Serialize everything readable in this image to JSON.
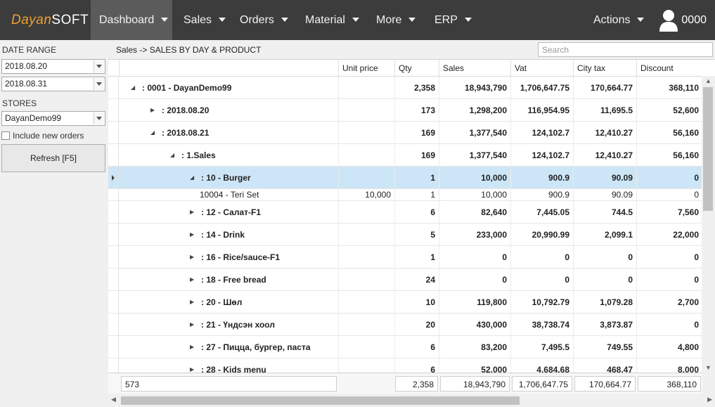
{
  "app": {
    "logo_part1": "Dayan",
    "logo_part2": "SOFT"
  },
  "nav": {
    "items": [
      {
        "label": "Dashboard"
      },
      {
        "label": "Sales"
      },
      {
        "label": "Orders"
      },
      {
        "label": "Material"
      },
      {
        "label": "More"
      },
      {
        "label": "ERP"
      }
    ],
    "actions_label": "Actions",
    "user_label": "0000"
  },
  "sidebar": {
    "date_range_label": "DATE RANGE",
    "date_from": "2018.08.20",
    "date_to": "2018.08.31",
    "stores_label": "STORES",
    "store_value": "DayanDemo99",
    "include_new_orders_label": "Include new orders",
    "refresh_label": "Refresh [F5]"
  },
  "breadcrumb": "Sales -> SALES BY DAY & PRODUCT",
  "search": {
    "placeholder": "Search"
  },
  "grid": {
    "columns": [
      "Unit price",
      "Qty",
      "Sales",
      "Vat",
      "City tax",
      "Discount"
    ],
    "rows": [
      {
        "toggle": "◢",
        "name": ": 0001 - DayanDemo99",
        "unit_price": "",
        "qty": "2,358",
        "sales": "18,943,790",
        "vat": "1,706,647.75",
        "city_tax": "170,664.77",
        "discount": "368,110"
      },
      {
        "toggle": "▶",
        "name": ": 2018.08.20",
        "unit_price": "",
        "qty": "173",
        "sales": "1,298,200",
        "vat": "116,954.95",
        "city_tax": "11,695.5",
        "discount": "52,600"
      },
      {
        "toggle": "◢",
        "name": ": 2018.08.21",
        "unit_price": "",
        "qty": "169",
        "sales": "1,377,540",
        "vat": "124,102.7",
        "city_tax": "12,410.27",
        "discount": "56,160"
      },
      {
        "toggle": "◢",
        "name": ": 1.Sales",
        "unit_price": "",
        "qty": "169",
        "sales": "1,377,540",
        "vat": "124,102.7",
        "city_tax": "12,410.27",
        "discount": "56,160"
      },
      {
        "toggle": "◢",
        "name": ": 10 - Burger",
        "unit_price": "",
        "qty": "1",
        "sales": "10,000",
        "vat": "900.9",
        "city_tax": "90.09",
        "discount": "0"
      },
      {
        "toggle": "",
        "name": "10004 - Teri Set",
        "unit_price": "10,000",
        "qty": "1",
        "sales": "10,000",
        "vat": "900.9",
        "city_tax": "90.09",
        "discount": "0"
      },
      {
        "toggle": "▶",
        "name": ": 12 - Салат-F1",
        "unit_price": "",
        "qty": "6",
        "sales": "82,640",
        "vat": "7,445.05",
        "city_tax": "744.5",
        "discount": "7,560"
      },
      {
        "toggle": "▶",
        "name": ": 14 - Drink",
        "unit_price": "",
        "qty": "5",
        "sales": "233,000",
        "vat": "20,990.99",
        "city_tax": "2,099.1",
        "discount": "22,000"
      },
      {
        "toggle": "▶",
        "name": ": 16 - Rice/sauce-F1",
        "unit_price": "",
        "qty": "1",
        "sales": "0",
        "vat": "0",
        "city_tax": "0",
        "discount": "0"
      },
      {
        "toggle": "▶",
        "name": ": 18 - Free bread",
        "unit_price": "",
        "qty": "24",
        "sales": "0",
        "vat": "0",
        "city_tax": "0",
        "discount": "0"
      },
      {
        "toggle": "▶",
        "name": ": 20 - Шөл",
        "unit_price": "",
        "qty": "10",
        "sales": "119,800",
        "vat": "10,792.79",
        "city_tax": "1,079.28",
        "discount": "2,700"
      },
      {
        "toggle": "▶",
        "name": ": 21 - Үндсэн хоол",
        "unit_price": "",
        "qty": "20",
        "sales": "430,000",
        "vat": "38,738.74",
        "city_tax": "3,873.87",
        "discount": "0"
      },
      {
        "toggle": "▶",
        "name": ": 27 - Пицца, бургер, паста",
        "unit_price": "",
        "qty": "6",
        "sales": "83,200",
        "vat": "7,495.5",
        "city_tax": "749.55",
        "discount": "4,800"
      },
      {
        "toggle": "▶",
        "name": ": 28 - Kids menu",
        "unit_price": "",
        "qty": "6",
        "sales": "52,000",
        "vat": "4,684.68",
        "city_tax": "468.47",
        "discount": "8,000"
      }
    ],
    "summary": {
      "count": "573",
      "qty": "2,358",
      "sales": "18,943,790",
      "vat": "1,706,647.75",
      "city_tax": "170,664.77",
      "discount": "368,110"
    }
  }
}
